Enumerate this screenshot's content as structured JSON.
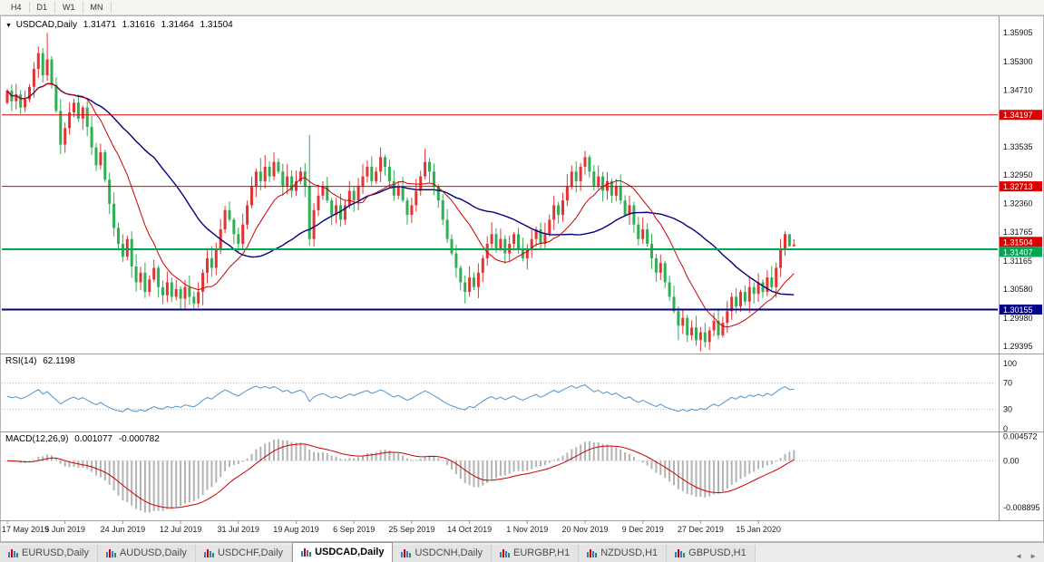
{
  "icons": {
    "chart_marker": "▼",
    "tab_scroll_left": "◄",
    "tab_scroll_right": "►"
  },
  "toolbar": {
    "timeframes": [
      "H4",
      "D1",
      "W1",
      "MN"
    ]
  },
  "chart": {
    "header": {
      "symbol": "USDCAD,Daily",
      "open": "1.31471",
      "high": "1.31616",
      "low": "1.31464",
      "close": "1.31504"
    },
    "price_axis_labels": [
      "1.35905",
      "1.35300",
      "1.34710",
      "1.33535",
      "1.32950",
      "1.32360",
      "1.31765",
      "1.31165",
      "1.30580",
      "1.29980",
      "1.29395"
    ],
    "hlines": [
      {
        "price": 1.34197,
        "label": "1.34197",
        "color": "#dd0000",
        "width": 1
      },
      {
        "price": 1.32713,
        "label": "1.32713",
        "color": "#dd0000",
        "width": 1
      },
      {
        "price": 1.31407,
        "label": "1.31407",
        "color": "#00a651",
        "width": 2
      },
      {
        "price": 1.30155,
        "label": "1.30155",
        "color": "#000089",
        "width": 2
      }
    ],
    "price_badge": {
      "price": 1.31504,
      "label": "1.31504",
      "color": "#dd0000"
    },
    "colors": {
      "bull": "#e53333",
      "bear": "#2fae54",
      "ma_fast": "#cc0000",
      "ma_slow": "#000080",
      "rsi": "#4f93ce",
      "macd_hist": "#b3b3b3",
      "macd_signal": "#cc0000",
      "axis_text": "#111111",
      "grid": "#bdbdbd",
      "separator": "#9a9a9a"
    }
  },
  "rsi": {
    "name": "RSI(14)",
    "value": "62.1198",
    "axis_labels": [
      "100",
      "70",
      "30",
      "0"
    ],
    "dotted_levels": [
      70,
      30
    ]
  },
  "macd": {
    "name": "MACD(12,26,9)",
    "value_main": "0.001077",
    "value_signal": "-0.000782",
    "axis_labels": [
      "0.004572",
      "0.00",
      "-0.008895"
    ]
  },
  "tabs": [
    {
      "label": "EURUSD,Daily",
      "active": false
    },
    {
      "label": "AUDUSD,Daily",
      "active": false
    },
    {
      "label": "USDCHF,Daily",
      "active": false
    },
    {
      "label": "USDCAD,Daily",
      "active": true
    },
    {
      "label": "USDCNH,Daily",
      "active": false
    },
    {
      "label": "EURGBP,H1",
      "active": false
    },
    {
      "label": "NZDUSD,H1",
      "active": false
    },
    {
      "label": "GBPUSD,H1",
      "active": false
    }
  ],
  "chart_data": {
    "type": "candlestick",
    "symbol": "USDCAD",
    "timeframe": "Daily",
    "title": "USDCAD,Daily",
    "ohlc_display": {
      "open": 1.31471,
      "high": 1.31616,
      "low": 1.31464,
      "close": 1.31504
    },
    "y_range": [
      1.2926,
      1.3615
    ],
    "hlines": [
      1.34197,
      1.32713,
      1.31407,
      1.30155
    ],
    "first_open": 1.3445,
    "closes": [
      1.347,
      1.3448,
      1.3462,
      1.3435,
      1.3452,
      1.3478,
      1.3515,
      1.3548,
      1.3502,
      1.3535,
      1.3482,
      1.3428,
      1.3358,
      1.3392,
      1.3425,
      1.3445,
      1.3412,
      1.3435,
      1.3395,
      1.3352,
      1.3315,
      1.3342,
      1.3285,
      1.3235,
      1.3185,
      1.3152,
      1.3125,
      1.3162,
      1.3105,
      1.3072,
      1.3092,
      1.3052,
      1.3078,
      1.3102,
      1.3062,
      1.3045,
      1.3072,
      1.3042,
      1.3058,
      1.3038,
      1.3062,
      1.3042,
      1.3028,
      1.3052,
      1.3092,
      1.3122,
      1.3102,
      1.3142,
      1.3182,
      1.3222,
      1.3202,
      1.3172,
      1.3152,
      1.3192,
      1.3232,
      1.3272,
      1.3302,
      1.3282,
      1.3312,
      1.3292,
      1.3322,
      1.3302,
      1.3272,
      1.3292,
      1.3262,
      1.3282,
      1.3302,
      1.3272,
      1.3162,
      1.3222,
      1.3252,
      1.3272,
      1.3242,
      1.3212,
      1.3232,
      1.3202,
      1.3232,
      1.3262,
      1.3242,
      1.3272,
      1.3292,
      1.3312,
      1.3282,
      1.3302,
      1.3332,
      1.3312,
      1.3282,
      1.3252,
      1.3272,
      1.3242,
      1.3212,
      1.3232,
      1.3262,
      1.3292,
      1.3322,
      1.3302,
      1.3272,
      1.3242,
      1.3202,
      1.3162,
      1.3132,
      1.3102,
      1.3072,
      1.3052,
      1.3082,
      1.3062,
      1.3092,
      1.3122,
      1.3152,
      1.3172,
      1.3142,
      1.3162,
      1.3132,
      1.3152,
      1.3172,
      1.3142,
      1.3122,
      1.3142,
      1.3162,
      1.3182,
      1.3152,
      1.3172,
      1.3202,
      1.3232,
      1.3212,
      1.3242,
      1.3272,
      1.3302,
      1.3282,
      1.3312,
      1.3332,
      1.3302,
      1.3272,
      1.3292,
      1.3262,
      1.3282,
      1.3252,
      1.3272,
      1.3242,
      1.3212,
      1.3232,
      1.3192,
      1.3162,
      1.3182,
      1.3152,
      1.3122,
      1.3092,
      1.3112,
      1.3072,
      1.3042,
      1.3012,
      1.2982,
      1.2998,
      1.2962,
      1.2978,
      1.2952,
      1.2968,
      1.2948,
      1.2972,
      1.2992,
      1.2962,
      1.2988,
      1.3012,
      1.3042,
      1.3022,
      1.3052,
      1.3032,
      1.3062,
      1.3048,
      1.3072,
      1.3052,
      1.3082,
      1.3062,
      1.3102,
      1.3142,
      1.3172,
      1.31471,
      1.31504
    ],
    "wick_overrides": {
      "7": {
        "h": 1.3562
      },
      "9": {
        "h": 1.359
      },
      "12": {
        "l": 1.3338
      },
      "21": {
        "h": 1.336
      },
      "42": {
        "l": 1.3018
      },
      "44": {
        "l": 1.3024
      },
      "57": {
        "h": 1.333
      },
      "68": {
        "h": 1.3378,
        "l": 1.3148
      },
      "84": {
        "h": 1.3352
      },
      "94": {
        "h": 1.335
      },
      "103": {
        "l": 1.3028
      },
      "130": {
        "h": 1.3345
      },
      "151": {
        "l": 1.2952
      },
      "155": {
        "l": 1.294
      },
      "157": {
        "l": 1.2937
      },
      "175": {
        "h": 1.3178
      },
      "176": {
        "h": 1.3162,
        "l": 1.31464
      },
      "177": {
        "h": 1.31616,
        "l": 1.31464
      }
    },
    "x_axis": [
      {
        "label": "17 May 2019",
        "i": 0
      },
      {
        "label": "5 Jun 2019",
        "i": 13
      },
      {
        "label": "24 Jun 2019",
        "i": 26
      },
      {
        "label": "12 Jul 2019",
        "i": 39
      },
      {
        "label": "31 Jul 2019",
        "i": 52
      },
      {
        "label": "19 Aug 2019",
        "i": 65
      },
      {
        "label": "6 Sep 2019",
        "i": 78
      },
      {
        "label": "25 Sep 2019",
        "i": 91
      },
      {
        "label": "14 Oct 2019",
        "i": 104
      },
      {
        "label": "1 Nov 2019",
        "i": 117
      },
      {
        "label": "20 Nov 2019",
        "i": 130
      },
      {
        "label": "9 Dec 2019",
        "i": 143
      },
      {
        "label": "27 Dec 2019",
        "i": 156
      },
      {
        "label": "15 Jan 2020",
        "i": 169
      }
    ],
    "overlays": {
      "ma_fast_period": 13,
      "ma_slow_period": 34
    },
    "indicators": {
      "rsi_period": 14,
      "rsi_value": 62.1198,
      "macd_params": [
        12,
        26,
        9
      ],
      "macd_value": 0.001077,
      "macd_signal_value": -0.000782
    }
  }
}
